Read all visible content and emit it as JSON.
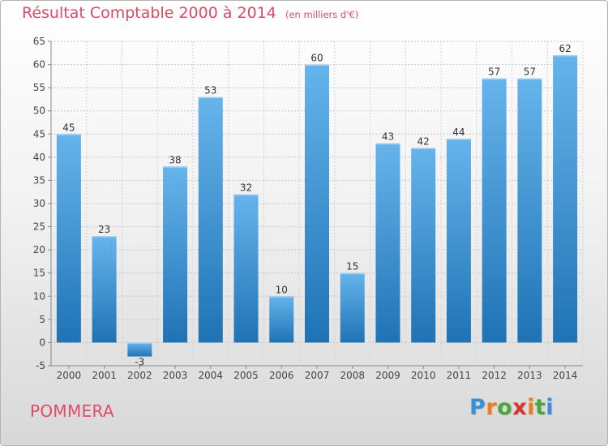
{
  "title": "Résultat Comptable 2000 à 2014",
  "subtitle": "(en milliers d'€)",
  "commune": "POMMERA",
  "brand": {
    "letters": [
      "P",
      "r",
      "o",
      "x",
      "i",
      "t",
      "i"
    ],
    "colors": [
      "#3a8fd6",
      "#ee7d22",
      "#4aa83a",
      "#d6342f",
      "#ee7d22",
      "#4aa83a",
      "#3a8fd6"
    ]
  },
  "colors": {
    "bar_top": "#66b4ec",
    "bar_bottom": "#1f73b5",
    "title": "#dd4a66"
  },
  "chart_data": {
    "type": "bar",
    "categories": [
      "2000",
      "2001",
      "2002",
      "2003",
      "2004",
      "2005",
      "2006",
      "2007",
      "2008",
      "2009",
      "2010",
      "2011",
      "2012",
      "2013",
      "2014"
    ],
    "values": [
      45,
      23,
      -3,
      38,
      53,
      32,
      10,
      60,
      15,
      43,
      42,
      44,
      57,
      57,
      62
    ],
    "title": "Résultat Comptable 2000 à 2014",
    "subtitle": "(en milliers d'€)",
    "ylim": [
      -5,
      65
    ],
    "yticks": [
      -5,
      0,
      5,
      10,
      15,
      20,
      25,
      30,
      35,
      40,
      45,
      50,
      55,
      60,
      65
    ],
    "grid": true
  }
}
